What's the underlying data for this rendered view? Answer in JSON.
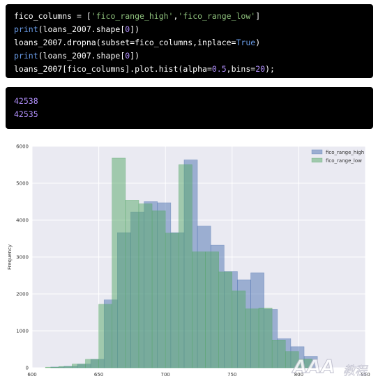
{
  "code": {
    "lines": [
      [
        {
          "t": "fico_columns = [",
          "c": ""
        },
        {
          "t": "'fico_range_high'",
          "c": "str"
        },
        {
          "t": ",",
          "c": ""
        },
        {
          "t": "'fico_range_low'",
          "c": "str"
        },
        {
          "t": "]",
          "c": ""
        }
      ],
      [
        {
          "t": "print",
          "c": "kw"
        },
        {
          "t": "(loans_2007.shape[",
          "c": ""
        },
        {
          "t": "0",
          "c": "num"
        },
        {
          "t": "])",
          "c": ""
        }
      ],
      [
        {
          "t": "loans_2007.dropna(subset=fico_columns,inplace=",
          "c": ""
        },
        {
          "t": "True",
          "c": "kw"
        },
        {
          "t": ")",
          "c": ""
        }
      ],
      [
        {
          "t": "print",
          "c": "kw"
        },
        {
          "t": "(loans_2007.shape[",
          "c": ""
        },
        {
          "t": "0",
          "c": "num"
        },
        {
          "t": "])",
          "c": ""
        }
      ],
      [
        {
          "t": "loans_2007[fico_columns].plot.hist(alpha=",
          "c": ""
        },
        {
          "t": "0.5",
          "c": "num"
        },
        {
          "t": ",bins=",
          "c": ""
        },
        {
          "t": "20",
          "c": "num"
        },
        {
          "t": ");",
          "c": ""
        }
      ]
    ]
  },
  "output": {
    "lines": [
      "42538",
      "42535"
    ]
  },
  "chart_data": {
    "type": "bar",
    "title": "",
    "xlabel": "",
    "ylabel": "Frequency",
    "xlim": [
      600,
      850
    ],
    "ylim": [
      0,
      6000
    ],
    "xticks": [
      "600",
      "650",
      "700",
      "750",
      "800",
      "850"
    ],
    "yticks": [
      "0",
      "1000",
      "2000",
      "3000",
      "4000",
      "5000",
      "6000"
    ],
    "grid": true,
    "legend_position": "top-right",
    "series": [
      {
        "name": "fico_range_high",
        "color": "#4c72b0",
        "bins": [
          [
            614,
            624,
            20
          ],
          [
            624,
            634,
            40
          ],
          [
            634,
            644,
            100
          ],
          [
            644,
            654,
            230
          ],
          [
            654,
            664,
            1840
          ],
          [
            664,
            674,
            3660
          ],
          [
            674,
            684,
            4220
          ],
          [
            684,
            694,
            4500
          ],
          [
            694,
            704,
            4470
          ],
          [
            704,
            714,
            3660
          ],
          [
            714,
            724,
            5630
          ],
          [
            724,
            734,
            3840
          ],
          [
            734,
            744,
            3320
          ],
          [
            744,
            754,
            2610
          ],
          [
            754,
            764,
            2380
          ],
          [
            764,
            774,
            2570
          ],
          [
            774,
            784,
            1580
          ],
          [
            784,
            794,
            790
          ],
          [
            794,
            804,
            570
          ],
          [
            804,
            814,
            310
          ]
        ]
      },
      {
        "name": "fico_range_low",
        "color": "#55a868",
        "bins": [
          [
            610,
            620,
            15
          ],
          [
            620,
            630,
            35
          ],
          [
            630,
            640,
            100
          ],
          [
            640,
            650,
            230
          ],
          [
            650,
            660,
            1720
          ],
          [
            660,
            670,
            5680
          ],
          [
            670,
            680,
            4540
          ],
          [
            680,
            690,
            4440
          ],
          [
            690,
            700,
            4250
          ],
          [
            700,
            710,
            3650
          ],
          [
            710,
            720,
            5500
          ],
          [
            720,
            730,
            3140
          ],
          [
            730,
            740,
            3140
          ],
          [
            740,
            750,
            2600
          ],
          [
            750,
            760,
            2080
          ],
          [
            760,
            770,
            1600
          ],
          [
            770,
            780,
            1620
          ],
          [
            780,
            790,
            750
          ],
          [
            790,
            800,
            440
          ],
          [
            800,
            810,
            240
          ]
        ]
      }
    ]
  },
  "watermark": {
    "logo_text": "AAA",
    "suffix_text": "教程"
  }
}
